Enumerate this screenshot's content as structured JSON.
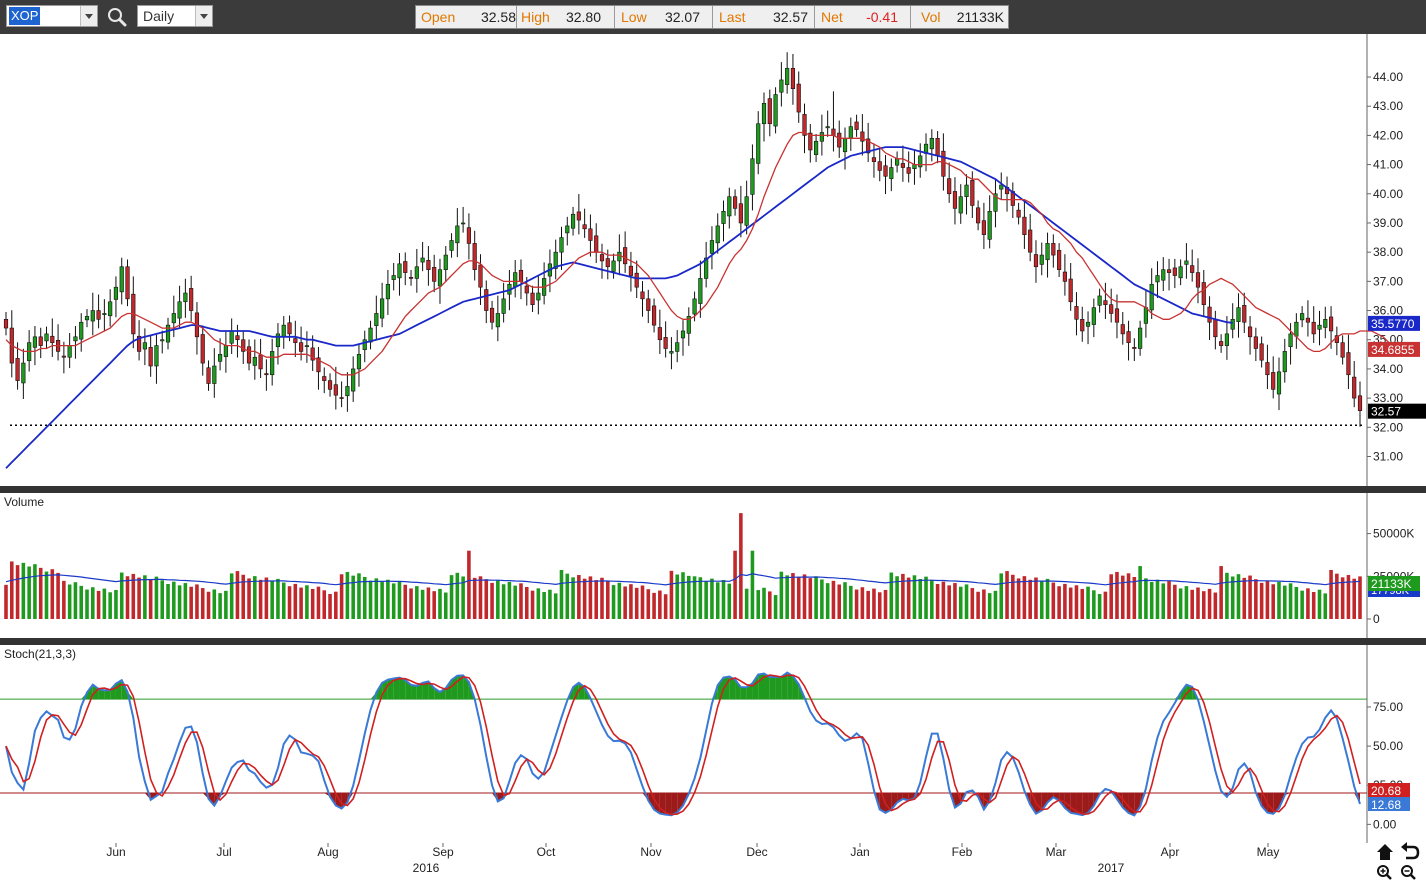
{
  "toolbar": {
    "symbol": "XOP",
    "interval": "Daily",
    "search_icon": "magnifier-icon",
    "quote": {
      "open_label": "Open",
      "open": "32.58",
      "high_label": "High",
      "high": "32.80",
      "low_label": "Low",
      "low": "32.07",
      "last_label": "Last",
      "last": "32.57",
      "net_label": "Net",
      "net": "-0.41",
      "vol_label": "Vol",
      "vol": "21133K"
    }
  },
  "colors": {
    "up_candle": "#1e9a1e",
    "down_candle": "#c0282c",
    "ma_short": "#c83232",
    "ma_long": "#1a28c8",
    "stoch_k": "#3a7ad6",
    "stoch_d": "#d02020",
    "overbought_fill": "#1f9a1f",
    "oversold_fill": "#9c1a1a"
  },
  "chart_data": [
    {
      "type": "candlestick",
      "title": "",
      "ylim": [
        30.4,
        45.2
      ],
      "y_ticks": [
        "44.00",
        "43.00",
        "42.00",
        "41.00",
        "40.00",
        "39.00",
        "38.00",
        "37.00",
        "36.00",
        "35.00",
        "34.00",
        "33.00",
        "32.00",
        "31.00"
      ],
      "x_ticks": [
        "Jun",
        "Jul",
        "Aug",
        "Sep",
        "Oct",
        "Nov",
        "Dec",
        "Jan",
        "Feb",
        "Mar",
        "Apr",
        "May"
      ],
      "year_labels": [
        "2016",
        "2017"
      ],
      "support_line": 32.07,
      "last_price_label": "32.57",
      "ma_short_label": "34.6855",
      "ma_long_label": "35.5770",
      "closes": [
        35.4,
        34.2,
        33.6,
        34.2,
        34.9,
        35.1,
        34.8,
        35.2,
        34.9,
        34.6,
        34.4,
        34.8,
        35.1,
        35.6,
        35.8,
        36.0,
        35.7,
        35.9,
        36.3,
        36.8,
        37.5,
        36.4,
        35.2,
        34.6,
        34.9,
        34.1,
        34.8,
        35.0,
        35.5,
        35.9,
        36.3,
        36.6,
        36.0,
        35.1,
        34.2,
        33.5,
        34.1,
        34.5,
        34.8,
        35.3,
        35.0,
        34.6,
        34.2,
        34.4,
        34.0,
        33.8,
        34.6,
        35.2,
        35.5,
        35.2,
        34.9,
        34.6,
        34.8,
        34.3,
        33.9,
        33.6,
        33.3,
        33.1,
        33.0,
        33.4,
        34.0,
        34.5,
        35.0,
        35.4,
        35.9,
        36.4,
        36.9,
        37.2,
        37.6,
        37.3,
        37.1,
        37.5,
        37.8,
        37.4,
        37.0,
        37.4,
        37.9,
        38.4,
        38.9,
        39.0,
        38.3,
        37.4,
        36.8,
        36.0,
        35.6,
        35.9,
        36.4,
        36.9,
        37.3,
        37.0,
        36.6,
        36.2,
        36.6,
        37.1,
        37.6,
        38.0,
        38.5,
        38.9,
        39.3,
        39.1,
        38.8,
        38.4,
        38.0,
        37.7,
        37.5,
        37.7,
        38.0,
        37.6,
        37.2,
        36.8,
        36.4,
        36.0,
        35.5,
        35.0,
        34.7,
        34.6,
        34.9,
        35.3,
        35.8,
        36.4,
        37.1,
        37.8,
        38.4,
        38.9,
        39.4,
        39.9,
        39.5,
        39.0,
        39.9,
        41.2,
        42.4,
        43.1,
        42.4,
        43.4,
        43.9,
        44.3,
        43.6,
        42.8,
        42.0,
        41.5,
        41.8,
        42.1,
        42.3,
        42.0,
        41.6,
        41.9,
        42.3,
        42.2,
        41.8,
        41.4,
        41.1,
        40.8,
        40.6,
        40.9,
        41.2,
        40.9,
        40.7,
        41.0,
        41.3,
        41.7,
        41.9,
        41.3,
        40.6,
        40.0,
        39.5,
        39.9,
        40.3,
        39.6,
        39.0,
        38.6,
        39.4,
        40.0,
        40.3,
        40.0,
        39.6,
        39.2,
        38.6,
        38.0,
        37.5,
        37.9,
        38.3,
        37.9,
        37.4,
        37.0,
        36.3,
        35.7,
        35.3,
        35.6,
        36.1,
        36.5,
        36.2,
        35.9,
        35.6,
        35.2,
        34.9,
        34.7,
        35.4,
        36.1,
        36.9,
        37.2,
        37.4,
        37.3,
        37.2,
        37.5,
        37.7,
        37.3,
        36.8,
        36.2,
        35.6,
        35.1,
        34.8,
        35.2,
        35.7,
        36.1,
        35.6,
        35.1,
        34.7,
        34.3,
        33.8,
        33.3,
        33.9,
        34.6,
        35.2,
        35.6,
        35.9,
        35.6,
        35.2,
        35.5,
        35.7,
        35.3,
        34.9,
        34.4,
        33.8,
        33.0,
        32.57
      ],
      "ma_short": [
        35.0,
        34.8,
        34.7,
        34.6,
        34.6,
        34.6,
        34.7,
        34.7,
        34.8,
        34.8,
        34.8,
        34.8,
        34.8,
        34.9,
        35.0,
        35.1,
        35.2,
        35.3,
        35.4,
        35.6,
        35.8,
        35.9,
        35.9,
        35.8,
        35.7,
        35.6,
        35.5,
        35.4,
        35.4,
        35.4,
        35.5,
        35.6,
        35.6,
        35.5,
        35.4,
        35.2,
        35.0,
        34.9,
        34.8,
        34.8,
        34.8,
        34.7,
        34.6,
        34.6,
        34.5,
        34.4,
        34.4,
        34.4,
        34.5,
        34.5,
        34.5,
        34.5,
        34.5,
        34.4,
        34.3,
        34.2,
        34.1,
        33.9,
        33.8,
        33.8,
        33.8,
        33.9,
        34.0,
        34.2,
        34.4,
        34.6,
        34.9,
        35.2,
        35.5,
        35.8,
        36.0,
        36.2,
        36.4,
        36.6,
        36.7,
        36.8,
        37.0,
        37.2,
        37.4,
        37.6,
        37.7,
        37.7,
        37.6,
        37.4,
        37.2,
        37.1,
        37.0,
        37.0,
        37.0,
        37.0,
        36.9,
        36.8,
        36.8,
        36.8,
        36.9,
        37.0,
        37.2,
        37.4,
        37.6,
        37.8,
        37.9,
        38.0,
        38.0,
        38.0,
        37.9,
        37.9,
        37.9,
        37.8,
        37.7,
        37.6,
        37.4,
        37.2,
        36.9,
        36.6,
        36.3,
        36.0,
        35.8,
        35.7,
        35.7,
        35.8,
        36.0,
        36.2,
        36.5,
        36.8,
        37.2,
        37.6,
        37.9,
        38.1,
        38.4,
        38.8,
        39.3,
        39.9,
        40.4,
        40.9,
        41.3,
        41.7,
        42.0,
        42.1,
        42.1,
        42.0,
        42.0,
        42.0,
        42.0,
        42.0,
        41.9,
        41.9,
        41.9,
        41.9,
        41.9,
        41.8,
        41.7,
        41.6,
        41.4,
        41.3,
        41.2,
        41.2,
        41.1,
        41.0,
        41.0,
        41.0,
        41.0,
        41.1,
        41.1,
        41.0,
        40.9,
        40.8,
        40.6,
        40.5,
        40.5,
        40.3,
        40.1,
        39.9,
        39.8,
        39.8,
        39.8,
        39.8,
        39.8,
        39.7,
        39.5,
        39.3,
        39.0,
        38.8,
        38.7,
        38.5,
        38.3,
        38.0,
        37.8,
        37.5,
        37.2,
        36.9,
        36.6,
        36.4,
        36.3,
        36.3,
        36.3,
        36.3,
        36.2,
        36.1,
        35.9,
        35.8,
        35.7,
        35.7,
        35.8,
        35.9,
        36.1,
        36.4,
        36.6,
        36.7,
        36.9,
        37.0,
        37.1,
        37.0,
        36.9,
        36.7,
        36.5,
        36.3,
        36.1,
        36.0,
        35.9,
        35.8,
        35.7,
        35.5,
        35.3,
        35.1,
        34.9,
        34.7,
        34.6,
        34.6,
        34.7,
        34.9,
        35.1,
        35.2,
        35.2,
        35.2,
        35.3,
        35.3,
        35.3,
        35.2,
        35.1,
        34.9,
        34.8,
        34.6855
      ],
      "ma_long": [
        30.6,
        30.8,
        31.0,
        31.2,
        31.4,
        31.6,
        31.8,
        32.0,
        32.2,
        32.4,
        32.6,
        32.8,
        33.0,
        33.2,
        33.4,
        33.6,
        33.8,
        34.0,
        34.2,
        34.4,
        34.6,
        34.8,
        34.95,
        35.05,
        35.1,
        35.15,
        35.2,
        35.25,
        35.3,
        35.35,
        35.4,
        35.45,
        35.5,
        35.5,
        35.45,
        35.4,
        35.35,
        35.3,
        35.3,
        35.3,
        35.3,
        35.3,
        35.3,
        35.25,
        35.2,
        35.15,
        35.1,
        35.1,
        35.1,
        35.1,
        35.1,
        35.05,
        35.0,
        35.0,
        34.95,
        34.9,
        34.85,
        34.8,
        34.8,
        34.8,
        34.8,
        34.85,
        34.9,
        34.95,
        35.0,
        35.05,
        35.1,
        35.15,
        35.2,
        35.3,
        35.4,
        35.5,
        35.6,
        35.7,
        35.8,
        35.9,
        36.0,
        36.1,
        36.2,
        36.3,
        36.35,
        36.4,
        36.45,
        36.5,
        36.55,
        36.6,
        36.65,
        36.7,
        36.8,
        36.9,
        37.0,
        37.1,
        37.2,
        37.3,
        37.4,
        37.5,
        37.55,
        37.6,
        37.65,
        37.6,
        37.55,
        37.5,
        37.45,
        37.4,
        37.35,
        37.3,
        37.25,
        37.2,
        37.15,
        37.1,
        37.1,
        37.1,
        37.1,
        37.1,
        37.1,
        37.15,
        37.2,
        37.3,
        37.4,
        37.5,
        37.6,
        37.75,
        37.9,
        38.05,
        38.2,
        38.35,
        38.5,
        38.65,
        38.8,
        38.95,
        39.1,
        39.25,
        39.4,
        39.55,
        39.7,
        39.85,
        40.0,
        40.15,
        40.3,
        40.45,
        40.6,
        40.75,
        40.9,
        41.0,
        41.1,
        41.2,
        41.3,
        41.35,
        41.4,
        41.45,
        41.5,
        41.55,
        41.6,
        41.6,
        41.6,
        41.6,
        41.55,
        41.5,
        41.45,
        41.4,
        41.35,
        41.3,
        41.25,
        41.2,
        41.15,
        41.1,
        41.0,
        40.9,
        40.8,
        40.7,
        40.6,
        40.5,
        40.35,
        40.2,
        40.05,
        39.9,
        39.75,
        39.6,
        39.45,
        39.3,
        39.15,
        39.0,
        38.85,
        38.7,
        38.55,
        38.4,
        38.25,
        38.1,
        37.95,
        37.8,
        37.65,
        37.5,
        37.35,
        37.2,
        37.05,
        36.9,
        36.8,
        36.7,
        36.6,
        36.5,
        36.4,
        36.3,
        36.2,
        36.1,
        36.0,
        35.9,
        35.85,
        35.8,
        35.75,
        35.7,
        35.65,
        35.6,
        35.577
      ],
      "highs_spike_at": 143
    },
    {
      "type": "bar",
      "title": "Volume",
      "ylim": [
        0,
        65000
      ],
      "y_ticks": [
        "50000K",
        "25000K",
        "0"
      ],
      "last_volume_label": "21133K",
      "volume_ma_label": "17798K"
    },
    {
      "type": "line",
      "title": "Stoch(21,3,3)",
      "ylim": [
        -10,
        105
      ],
      "y_ticks": [
        "75.00",
        "50.00",
        "25.00",
        "0.00"
      ],
      "overbought": 80,
      "oversold": 20,
      "k_label": "20.68",
      "d_label": "12.68"
    }
  ],
  "corner_icons": [
    "home-icon",
    "undo-icon",
    "zoom-in-icon",
    "zoom-out-icon"
  ]
}
